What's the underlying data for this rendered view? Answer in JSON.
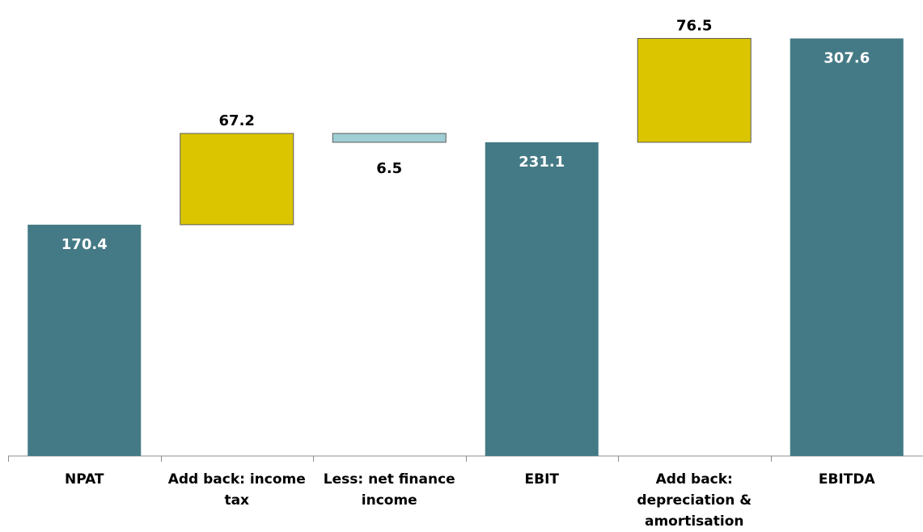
{
  "chart_data": {
    "type": "bar",
    "title": "",
    "xlabel": "",
    "ylabel": "",
    "ylim": [
      0,
      320
    ],
    "grid": false,
    "legend": "none",
    "categories": [
      "NPAT",
      "Add back: income tax",
      "Less: net finance income",
      "EBIT",
      "Add back: depreciation & amortisation",
      "EBITDA"
    ],
    "category_lines": [
      [
        "NPAT"
      ],
      [
        "Add back: income",
        "tax"
      ],
      [
        "Less: net finance",
        "income"
      ],
      [
        "EBIT"
      ],
      [
        "Add back:",
        "depreciation &",
        "amortisation"
      ],
      [
        "EBITDA"
      ]
    ],
    "bars": [
      {
        "category": "NPAT",
        "kind": "total",
        "start": 0,
        "end": 170.4,
        "label": "170.4"
      },
      {
        "category": "Add back: income tax",
        "kind": "increase",
        "start": 170.4,
        "end": 237.6,
        "label": "67.2"
      },
      {
        "category": "Less: net finance income",
        "kind": "decrease",
        "start": 237.6,
        "end": 231.1,
        "label": "6.5"
      },
      {
        "category": "EBIT",
        "kind": "total",
        "start": 0,
        "end": 231.1,
        "label": "231.1"
      },
      {
        "category": "Add back: depreciation & amortisation",
        "kind": "increase",
        "start": 231.1,
        "end": 307.6,
        "label": "76.5"
      },
      {
        "category": "EBITDA",
        "kind": "total",
        "start": 0,
        "end": 307.6,
        "label": "307.6"
      }
    ],
    "colors": {
      "total": "#447a85",
      "increase": "#dbc500",
      "decrease": "#9fcfd4",
      "edge": "#5b5b5b",
      "axis": "#8c8c8c",
      "label_dark": "#000000",
      "label_light": "#ffffff"
    }
  }
}
